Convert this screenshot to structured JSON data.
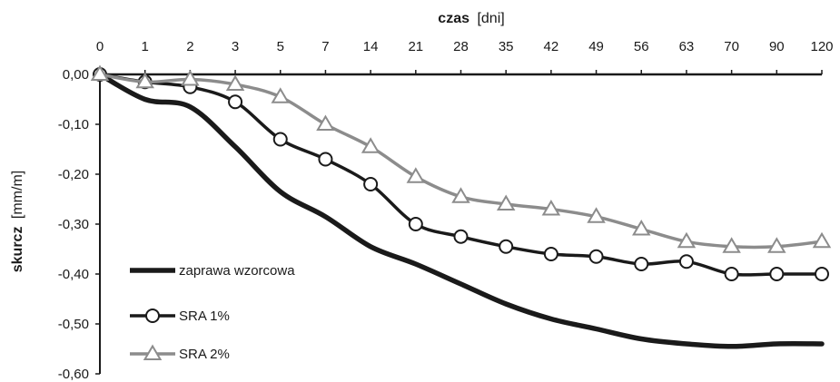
{
  "chart_data": {
    "type": "line",
    "title": "",
    "xlabel": {
      "bold": "czas",
      "unit": "[dni]"
    },
    "ylabel": {
      "bold": "skurcz",
      "unit": "[mm/m]"
    },
    "x_position": "top",
    "categories": [
      "0",
      "1",
      "2",
      "3",
      "5",
      "7",
      "14",
      "21",
      "28",
      "35",
      "42",
      "49",
      "56",
      "63",
      "70",
      "90",
      "120"
    ],
    "yticks": [
      "0,00",
      "-0,10",
      "-0,20",
      "-0,30",
      "-0,40",
      "-0,50",
      "-0,60"
    ],
    "ytick_values": [
      0,
      -0.1,
      -0.2,
      -0.3,
      -0.4,
      -0.5,
      -0.6
    ],
    "ylim": [
      -0.6,
      0
    ],
    "grid": false,
    "legend_position": "bottom-left",
    "series": [
      {
        "name": "zaprawa wzorcowa",
        "marker": "none",
        "color": "#1a1a1a",
        "values": [
          0,
          -0.05,
          -0.065,
          -0.145,
          -0.235,
          -0.285,
          -0.345,
          -0.38,
          -0.42,
          -0.46,
          -0.49,
          -0.51,
          -0.53,
          -0.54,
          -0.545,
          -0.54,
          -0.54
        ]
      },
      {
        "name": "SRA 1%",
        "marker": "circle",
        "color": "#1a1a1a",
        "values": [
          0,
          -0.015,
          -0.025,
          -0.055,
          -0.13,
          -0.17,
          -0.22,
          -0.3,
          -0.325,
          -0.345,
          -0.36,
          -0.365,
          -0.38,
          -0.375,
          -0.4,
          -0.4,
          -0.4
        ]
      },
      {
        "name": "SRA 2%",
        "marker": "triangle",
        "color": "#8c8c8c",
        "values": [
          0,
          -0.015,
          -0.01,
          -0.02,
          -0.045,
          -0.1,
          -0.145,
          -0.205,
          -0.245,
          -0.26,
          -0.27,
          -0.285,
          -0.31,
          -0.335,
          -0.345,
          -0.345,
          -0.335
        ]
      }
    ]
  }
}
